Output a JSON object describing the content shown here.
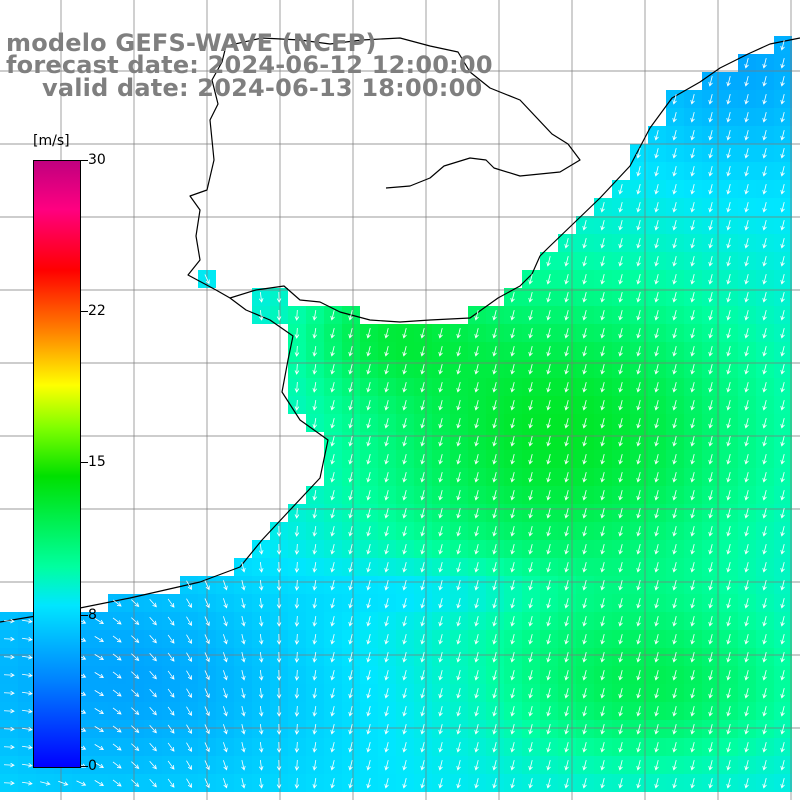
{
  "title": {
    "line1": "modelo GEFS-WAVE (NCEP)",
    "line2": "forecast date: 2024-06-12 12:00:00",
    "line3": "valid date: 2024-06-13 18:00:00"
  },
  "colorbar": {
    "unit": "[m/s]",
    "ticks": [
      "30",
      "22",
      "15",
      "8",
      "0"
    ],
    "tick_values": [
      30,
      22,
      15,
      8,
      0
    ],
    "min": 0,
    "max": 30
  },
  "colors": {
    "title_gray": "#7f7f7f",
    "land": "#ffffff",
    "grid": "#7a7a7a",
    "coast": "#000000",
    "arrows": "#ffffff"
  },
  "map": {
    "variable": "wind speed and direction",
    "arrow_direction": "mostly south to south-southwest in the east, eastward near the southwest corner",
    "strongest_winds_area": "central and southeastern ocean, about 12-14 m/s",
    "weakest_winds_area": "near the southwest coast and top edge, about 5-7 m/s"
  }
}
